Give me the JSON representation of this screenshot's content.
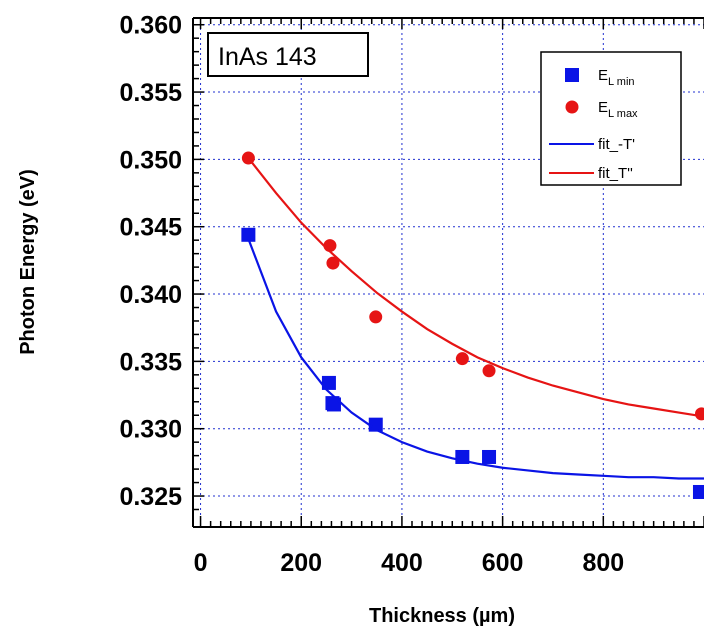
{
  "chart_data": {
    "type": "scatter",
    "xlabel": "Thickness (µm)",
    "ylabel": "Photon Energy (eV)",
    "xlim": [
      -15,
      1000
    ],
    "ylim": [
      0.3227,
      0.3605
    ],
    "x_ticks": [
      0,
      200,
      400,
      600,
      800
    ],
    "x_tick_labels": [
      "0",
      "200",
      "400",
      "600",
      "800"
    ],
    "y_ticks": [
      0.325,
      0.33,
      0.335,
      0.34,
      0.345,
      0.35,
      0.355,
      0.36
    ],
    "y_tick_labels": [
      "0.325",
      "0.330",
      "0.335",
      "0.340",
      "0.345",
      "0.350",
      "0.355",
      "0.360"
    ],
    "grid": true,
    "legend_position": "top-right",
    "annotation": "InAs 143",
    "colors": {
      "blue": "#0a14e6",
      "red": "#e61414",
      "grid": "#2030d0"
    },
    "series": [
      {
        "name": "E_L min",
        "label_main": "E",
        "label_sub": "L min",
        "marker": "square",
        "color": "#0a14e6",
        "x": [
          95,
          255,
          262,
          265,
          348,
          520,
          573,
          992
        ],
        "y": [
          0.3444,
          0.3334,
          0.3319,
          0.3318,
          0.3303,
          0.3279,
          0.3279,
          0.3253
        ]
      },
      {
        "name": "E_L max",
        "label_main": "E",
        "label_sub": "L max",
        "marker": "circle",
        "color": "#e61414",
        "x": [
          95,
          257,
          263,
          348,
          520,
          573,
          995
        ],
        "y": [
          0.3501,
          0.3436,
          0.3423,
          0.3383,
          0.3352,
          0.3343,
          0.3311
        ]
      },
      {
        "name": "fit_-T'",
        "type": "line",
        "color": "#0a14e6",
        "x": [
          95,
          150,
          200,
          250,
          300,
          350,
          400,
          450,
          500,
          550,
          600,
          650,
          700,
          750,
          800,
          850,
          900,
          950,
          1000
        ],
        "y": [
          0.3441,
          0.3387,
          0.3353,
          0.3329,
          0.3312,
          0.3299,
          0.329,
          0.3283,
          0.3278,
          0.3274,
          0.3271,
          0.3269,
          0.3267,
          0.3266,
          0.3265,
          0.3264,
          0.3264,
          0.3263,
          0.3263
        ]
      },
      {
        "name": "fit_T''",
        "type": "line",
        "color": "#e61414",
        "x": [
          95,
          150,
          200,
          250,
          300,
          350,
          400,
          450,
          500,
          550,
          600,
          650,
          700,
          750,
          800,
          850,
          900,
          950,
          1000
        ],
        "y": [
          0.3501,
          0.3475,
          0.3453,
          0.3434,
          0.3417,
          0.3401,
          0.3387,
          0.3374,
          0.3363,
          0.3353,
          0.3345,
          0.3338,
          0.3332,
          0.3327,
          0.3322,
          0.3318,
          0.3315,
          0.3312,
          0.3309
        ]
      }
    ]
  }
}
